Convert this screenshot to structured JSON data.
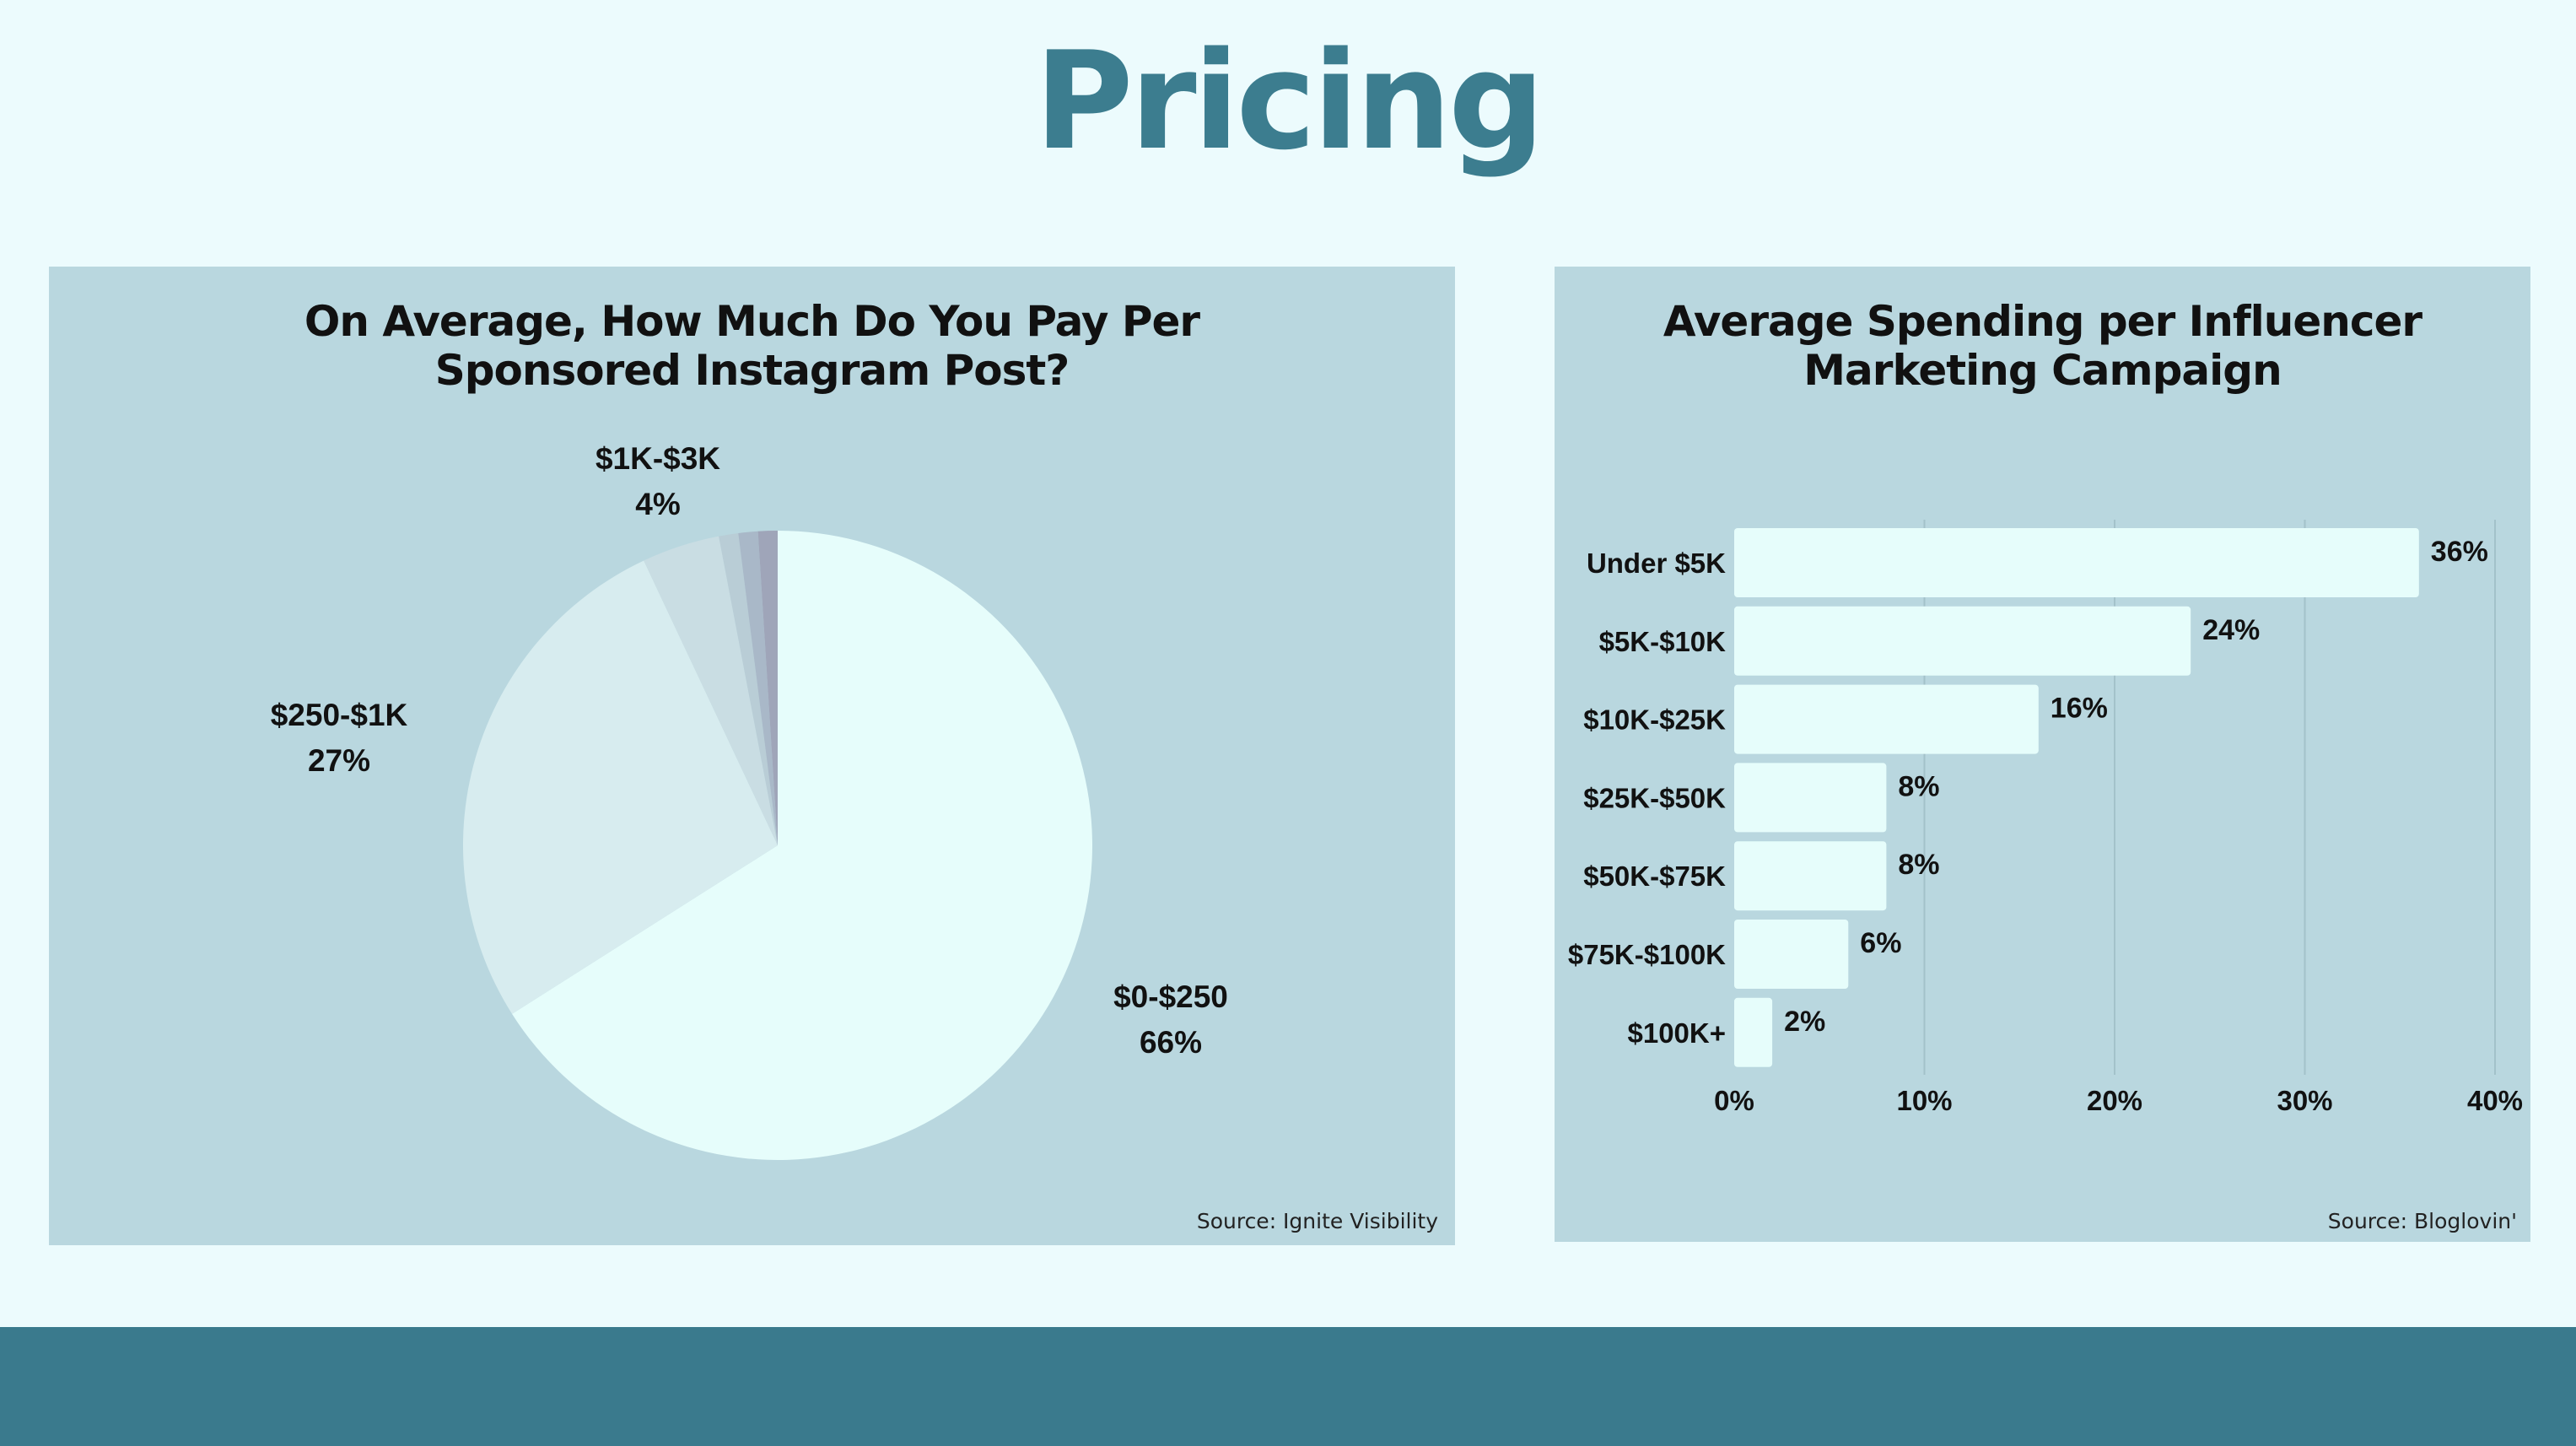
{
  "page": {
    "title": "Pricing"
  },
  "colors": {
    "background": "#ecfbfd",
    "title": "#3c7d8f",
    "panel": "#b9d7df",
    "footer": "#3a7a8d",
    "bar": "#e6fdfb",
    "gridline": "#a3c2ca",
    "text": "#111111"
  },
  "charts": {
    "left": {
      "title_line1": "On Average, How Much Do You Pay Per",
      "title_line2": "Sponsored Instagram Post?",
      "source": "Source: Ignite Visibility"
    },
    "right": {
      "title_line1": "Average Spending per Influencer",
      "title_line2": "Marketing Campaign",
      "source": "Source: Bloglovin'"
    }
  },
  "chart_data": [
    {
      "type": "pie",
      "title": "On Average, How Much Do You Pay Per Sponsored Instagram Post?",
      "categories": [
        "$0-$250",
        "$250-$1K",
        "$1K-$3K",
        "",
        "",
        ""
      ],
      "values": [
        66,
        27,
        4,
        1,
        1,
        1
      ],
      "labels": [
        "66%",
        "27%",
        "4%",
        "",
        "",
        ""
      ],
      "colors": [
        "#e6fdfb",
        "#d7ecef",
        "#c9dde3",
        "#b9cdd6",
        "#a9b8c8",
        "#9fa5b9"
      ],
      "start_angle": "12 o'clock",
      "direction": "clockwise"
    },
    {
      "type": "bar",
      "orientation": "horizontal",
      "title": "Average Spending per Influencer Marketing Campaign",
      "categories": [
        "Under $5K",
        "$5K-$10K",
        "$10K-$25K",
        "$25K-$50K",
        "$50K-$75K",
        "$75K-$100K",
        "$100K+"
      ],
      "values": [
        36,
        24,
        16,
        8,
        8,
        6,
        2
      ],
      "value_labels": [
        "36%",
        "24%",
        "16%",
        "8%",
        "8%",
        "6%",
        "2%"
      ],
      "xlim": [
        0,
        40
      ],
      "xticks": [
        "0%",
        "10%",
        "20%",
        "30%",
        "40%"
      ],
      "grid": true
    }
  ]
}
